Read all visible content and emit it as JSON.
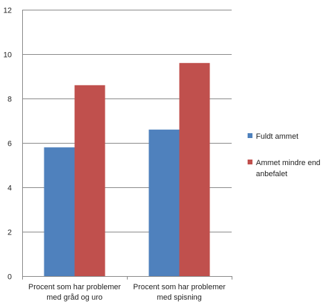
{
  "chart_data": {
    "type": "bar",
    "categories": [
      [
        "Procent som har problemer",
        "med gråd og uro"
      ],
      [
        "Procent som har problemer",
        "med spisning"
      ]
    ],
    "series": [
      {
        "name": "Fuldt ammet",
        "color": "#4F81BD",
        "values": [
          5.8,
          6.6
        ]
      },
      {
        "name": [
          "Ammet mindre end",
          "anbefalet"
        ],
        "color": "#C0504D",
        "values": [
          8.6,
          9.6
        ]
      }
    ],
    "ylim": [
      0,
      12
    ],
    "yticks": [
      "0",
      "2",
      "4",
      "6",
      "8",
      "10",
      "12"
    ],
    "grid": true,
    "legend_position": "right",
    "title": "",
    "xlabel": "",
    "ylabel": ""
  }
}
